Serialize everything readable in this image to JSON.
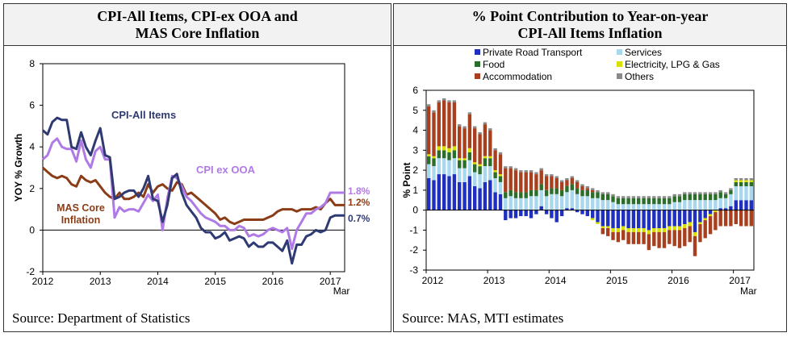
{
  "panels": {
    "left": {
      "title_line1": "CPI-All Items, CPI-ex OOA and",
      "title_line2": "MAS Core Inflation",
      "source": "Source: Department of Statistics"
    },
    "right": {
      "title_line1": "% Point Contribution to Year-on-year",
      "title_line2": "CPI-All Items Inflation",
      "source": "Source: MAS, MTI estimates"
    }
  },
  "colors": {
    "cpi_all": "#2f3a73",
    "cpi_ex_ooa": "#b07ae6",
    "mas_core": "#8b3d17",
    "private_road_transport": "#1f2fbf",
    "food": "#2a6e2a",
    "accommodation": "#a8401f",
    "services": "#a9d8ee",
    "electricity": "#d8e000",
    "others": "#8a8a8a"
  },
  "chart_data": [
    {
      "type": "line",
      "title": "",
      "ylabel": "YOY % Growth",
      "ylim": [
        -2,
        8
      ],
      "yticks": [
        "8",
        "6",
        "4",
        "2",
        "0",
        "-2"
      ],
      "xticks": [
        "2012",
        "2013",
        "2014",
        "2015",
        "2016",
        "2017"
      ],
      "x_end_label": "Mar",
      "x_range": [
        "2012-01",
        "2017-03"
      ],
      "grid": false,
      "series": [
        {
          "name": "CPI-All Items",
          "end_label": "0.7%",
          "values": [
            4.8,
            4.6,
            5.2,
            5.4,
            5.3,
            5.3,
            4.0,
            3.9,
            4.7,
            4.0,
            3.6,
            4.3,
            4.9,
            3.6,
            3.5,
            1.5,
            1.6,
            1.8,
            1.9,
            1.9,
            1.6,
            2.0,
            2.6,
            1.5,
            1.4,
            0.4,
            1.2,
            2.5,
            2.7,
            1.8,
            1.2,
            0.9,
            0.6,
            0.1,
            -0.1,
            -0.1,
            -0.4,
            -0.3,
            -0.1,
            -0.5,
            -0.4,
            -0.3,
            -0.4,
            -0.8,
            -0.6,
            -0.8,
            -0.8,
            -0.6,
            -0.6,
            -0.8,
            -1.0,
            -0.5,
            -1.6,
            -0.7,
            -0.7,
            -0.3,
            -0.2,
            0.0,
            -0.1,
            0.0,
            0.6,
            0.7,
            0.7,
            0.7
          ],
          "color_key": "cpi_all"
        },
        {
          "name": "CPI ex OOA",
          "end_label": "1.8%",
          "values": [
            3.4,
            3.6,
            4.2,
            4.4,
            4.0,
            3.9,
            3.9,
            3.3,
            4.3,
            3.4,
            3.0,
            3.8,
            4.0,
            3.4,
            3.4,
            0.6,
            1.1,
            0.9,
            1.0,
            1.0,
            0.9,
            1.3,
            1.7,
            1.4,
            1.7,
            0.0,
            1.5,
            2.6,
            2.5,
            2.1,
            1.6,
            1.4,
            1.1,
            0.8,
            0.6,
            0.5,
            0.4,
            0.2,
            0.2,
            0.0,
            0.0,
            0.2,
            0.1,
            -0.3,
            -0.2,
            -0.3,
            -0.2,
            0.0,
            0.1,
            0.0,
            -0.1,
            0.1,
            -0.9,
            0.0,
            0.4,
            0.8,
            0.8,
            1.0,
            1.1,
            1.3,
            1.8,
            1.8,
            1.8,
            1.8
          ],
          "color_key": "cpi_ex_ooa"
        },
        {
          "name": "MAS Core Inflation",
          "end_label": "1.2%",
          "values": [
            3.0,
            2.8,
            2.6,
            2.5,
            2.6,
            2.5,
            2.2,
            2.1,
            2.6,
            2.4,
            2.3,
            2.4,
            2.1,
            1.8,
            1.6,
            1.5,
            1.8,
            1.5,
            1.5,
            1.6,
            1.8,
            1.6,
            2.2,
            1.8,
            2.1,
            2.2,
            2.0,
            1.9,
            2.3,
            2.2,
            1.7,
            1.8,
            1.6,
            1.4,
            1.2,
            1.0,
            0.8,
            0.5,
            0.6,
            0.4,
            0.3,
            0.4,
            0.5,
            0.5,
            0.5,
            0.5,
            0.5,
            0.6,
            0.7,
            0.9,
            1.0,
            1.0,
            1.0,
            0.9,
            1.0,
            1.0,
            1.0,
            1.1,
            1.0,
            1.3,
            1.5,
            1.2,
            1.2,
            1.2
          ],
          "color_key": "mas_core"
        }
      ]
    },
    {
      "type": "bar",
      "stacked": true,
      "title": "",
      "ylabel": "% Point",
      "ylim": [
        -3,
        6
      ],
      "yticks": [
        "6",
        "5",
        "4",
        "3",
        "2",
        "1",
        "0",
        "-1",
        "-2",
        "-3"
      ],
      "xticks": [
        "2012",
        "2013",
        "2014",
        "2015",
        "2016",
        "2017"
      ],
      "x_end_label": "Mar",
      "x_range": [
        "2012-01",
        "2017-03"
      ],
      "legend": [
        "Private Road Transport",
        "Services",
        "Food",
        "Electricity, LPG & Gas",
        "Accommodation",
        "Others"
      ],
      "legend_position": "top",
      "series": [
        {
          "name": "Private Road Transport",
          "color_key": "private_road_transport",
          "values": [
            1.6,
            1.5,
            1.8,
            1.8,
            1.7,
            1.8,
            1.4,
            1.4,
            1.7,
            1.2,
            1.1,
            1.4,
            1.5,
            0.9,
            0.8,
            -0.5,
            -0.4,
            -0.4,
            -0.3,
            -0.3,
            -0.4,
            -0.2,
            0.2,
            -0.2,
            -0.4,
            -0.6,
            -0.3,
            0.1,
            0.1,
            -0.1,
            -0.2,
            -0.3,
            -0.4,
            -0.6,
            -0.8,
            -0.8,
            -0.9,
            -0.9,
            -0.8,
            -0.9,
            -0.9,
            -0.9,
            -0.9,
            -1.0,
            -0.9,
            -0.9,
            -0.9,
            -0.8,
            -0.8,
            -0.8,
            -0.7,
            -0.6,
            -1.1,
            -0.6,
            -0.4,
            -0.2,
            0.0,
            0.1,
            0.1,
            0.2,
            0.5,
            0.5,
            0.5,
            0.5
          ]
        },
        {
          "name": "Services",
          "color_key": "services",
          "values": [
            0.7,
            0.7,
            0.8,
            0.8,
            0.8,
            0.8,
            0.7,
            0.7,
            0.8,
            0.7,
            0.7,
            0.8,
            0.7,
            0.7,
            0.6,
            0.6,
            0.7,
            0.6,
            0.6,
            0.6,
            0.7,
            0.7,
            0.8,
            0.7,
            0.8,
            0.8,
            0.7,
            0.8,
            0.9,
            0.8,
            0.7,
            0.7,
            0.6,
            0.6,
            0.5,
            0.5,
            0.4,
            0.3,
            0.3,
            0.3,
            0.3,
            0.3,
            0.3,
            0.3,
            0.3,
            0.3,
            0.3,
            0.3,
            0.4,
            0.4,
            0.5,
            0.5,
            0.5,
            0.5,
            0.5,
            0.5,
            0.5,
            0.5,
            0.5,
            0.6,
            0.7,
            0.7,
            0.7,
            0.7
          ]
        },
        {
          "name": "Food",
          "color_key": "food",
          "values": [
            0.4,
            0.4,
            0.4,
            0.4,
            0.4,
            0.4,
            0.4,
            0.4,
            0.4,
            0.4,
            0.4,
            0.4,
            0.4,
            0.3,
            0.3,
            0.3,
            0.3,
            0.3,
            0.3,
            0.3,
            0.3,
            0.3,
            0.3,
            0.3,
            0.3,
            0.3,
            0.3,
            0.3,
            0.3,
            0.3,
            0.3,
            0.3,
            0.3,
            0.3,
            0.3,
            0.3,
            0.3,
            0.3,
            0.3,
            0.3,
            0.3,
            0.3,
            0.3,
            0.3,
            0.3,
            0.3,
            0.3,
            0.3,
            0.3,
            0.3,
            0.3,
            0.3,
            0.3,
            0.3,
            0.3,
            0.3,
            0.3,
            0.3,
            0.2,
            0.2,
            0.2,
            0.2,
            0.2,
            0.2
          ]
        },
        {
          "name": "Electricity, LPG & Gas",
          "color_key": "electricity",
          "values": [
            0.1,
            0.1,
            0.2,
            0.2,
            0.2,
            0.2,
            0.1,
            0.1,
            0.2,
            0.1,
            0.1,
            0.1,
            0.1,
            0.1,
            0.1,
            0.0,
            0.0,
            0.0,
            0.0,
            0.0,
            0.0,
            0.0,
            0.0,
            0.0,
            0.0,
            0.0,
            0.0,
            0.0,
            0.0,
            0.0,
            0.0,
            0.0,
            -0.1,
            -0.1,
            -0.1,
            -0.1,
            -0.2,
            -0.2,
            -0.2,
            -0.2,
            -0.2,
            -0.2,
            -0.2,
            -0.2,
            -0.2,
            -0.2,
            -0.2,
            -0.2,
            -0.2,
            -0.2,
            -0.2,
            -0.2,
            -0.2,
            -0.1,
            -0.1,
            -0.1,
            -0.1,
            0.0,
            0.0,
            0.0,
            0.1,
            0.1,
            0.1,
            0.1
          ]
        },
        {
          "name": "Accommodation",
          "color_key": "accommodation",
          "values": [
            2.4,
            2.2,
            2.2,
            2.3,
            2.3,
            2.2,
            1.6,
            1.5,
            1.7,
            1.7,
            1.5,
            1.6,
            1.3,
            1.0,
            1.0,
            1.2,
            1.1,
            1.1,
            1.0,
            1.0,
            0.9,
            0.8,
            0.7,
            0.7,
            0.6,
            0.5,
            0.4,
            0.3,
            0.3,
            0.3,
            0.2,
            0.1,
            0.1,
            0.0,
            -0.3,
            -0.4,
            -0.4,
            -0.5,
            -0.5,
            -0.6,
            -0.6,
            -0.6,
            -0.6,
            -0.8,
            -0.7,
            -0.8,
            -0.8,
            -0.7,
            -0.8,
            -0.9,
            -0.9,
            -0.8,
            -1.0,
            -0.9,
            -0.9,
            -0.9,
            -0.9,
            -0.8,
            -0.8,
            -0.8,
            -0.7,
            -0.8,
            -0.8,
            -0.8
          ]
        },
        {
          "name": "Others",
          "color_key": "others",
          "values": [
            0.1,
            0.1,
            0.1,
            0.1,
            0.1,
            0.1,
            0.1,
            0.1,
            0.1,
            0.1,
            0.1,
            0.1,
            0.1,
            0.1,
            0.1,
            0.1,
            0.1,
            0.1,
            0.1,
            0.1,
            0.1,
            0.1,
            0.1,
            0.1,
            0.1,
            0.1,
            0.1,
            0.1,
            0.1,
            0.1,
            0.1,
            0.1,
            0.1,
            0.1,
            0.1,
            0.1,
            0.1,
            0.1,
            0.1,
            0.1,
            0.1,
            0.1,
            0.1,
            0.1,
            0.1,
            0.1,
            0.1,
            0.1,
            0.1,
            0.1,
            0.1,
            0.1,
            0.1,
            0.1,
            0.1,
            0.1,
            0.1,
            0.1,
            0.1,
            0.1,
            0.1,
            0.1,
            0.1,
            0.1
          ]
        }
      ]
    }
  ]
}
